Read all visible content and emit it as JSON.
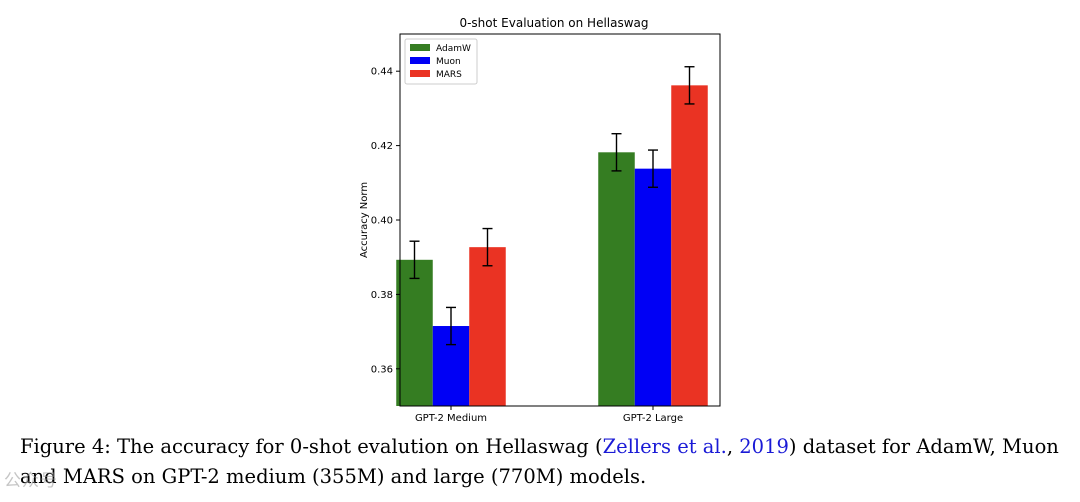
{
  "chart_data": {
    "type": "bar",
    "title": "0-shot Evaluation on Hellaswag",
    "xlabel": "",
    "ylabel": "Accuracy Norm",
    "categories": [
      "GPT-2 Medium",
      "GPT-2 Large"
    ],
    "series": [
      {
        "name": "AdamW",
        "color": "#357d22",
        "values": [
          0.3893,
          0.4182
        ],
        "errors": [
          0.005,
          0.005
        ]
      },
      {
        "name": "Muon",
        "color": "#0000f5",
        "values": [
          0.3715,
          0.4138
        ],
        "errors": [
          0.005,
          0.005
        ]
      },
      {
        "name": "MARS",
        "color": "#ea3323",
        "values": [
          0.3927,
          0.4362
        ],
        "errors": [
          0.005,
          0.005
        ]
      }
    ],
    "ylim": [
      0.35,
      0.45
    ],
    "yticks": [
      0.36,
      0.38,
      0.4,
      0.42,
      0.44
    ],
    "ytick_labels": [
      "0.36",
      "0.38",
      "0.40",
      "0.42",
      "0.44"
    ],
    "legend_position": "top-left",
    "grid": false
  },
  "caption": {
    "prefix": "Figure 4: The accuracy for 0-shot evalution on Hellaswag (",
    "citation_author": "Zellers et al.",
    "citation_sep": ", ",
    "citation_year": "2019",
    "suffix": ") dataset for AdamW, Muon and MARS on GPT-2 medium (355M) and large (770M) models."
  },
  "watermark": {
    "text": "公众号"
  }
}
